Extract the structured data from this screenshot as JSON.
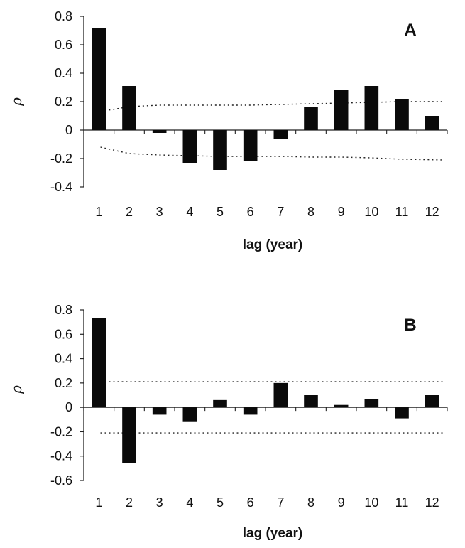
{
  "chart_data": [
    {
      "type": "bar",
      "panel_label": "A",
      "categories": [
        "1",
        "2",
        "3",
        "4",
        "5",
        "6",
        "7",
        "8",
        "9",
        "10",
        "11",
        "12"
      ],
      "values": [
        0.72,
        0.31,
        -0.02,
        -0.23,
        -0.28,
        -0.22,
        -0.06,
        0.16,
        0.28,
        0.31,
        0.22,
        0.1
      ],
      "confidence_upper": [
        0.13,
        0.165,
        0.175,
        0.175,
        0.175,
        0.175,
        0.18,
        0.185,
        0.19,
        0.195,
        0.2,
        0.2
      ],
      "confidence_lower": [
        -0.12,
        -0.165,
        -0.175,
        -0.18,
        -0.185,
        -0.185,
        -0.185,
        -0.19,
        -0.19,
        -0.195,
        -0.205,
        -0.21
      ],
      "xlabel": "lag (year)",
      "ylabel": "ρ",
      "ylim": [
        -0.4,
        0.8
      ],
      "yticks": [
        "0.8",
        "0.6",
        "0.4",
        "0.2",
        "0",
        "-0.2",
        "-0.4"
      ],
      "ytick_values": [
        0.8,
        0.6,
        0.4,
        0.2,
        0,
        -0.2,
        -0.4
      ],
      "grid": false,
      "bar_color": "#0a0a0a"
    },
    {
      "type": "bar",
      "panel_label": "B",
      "categories": [
        "1",
        "2",
        "3",
        "4",
        "5",
        "6",
        "7",
        "8",
        "9",
        "10",
        "11",
        "12"
      ],
      "values": [
        0.73,
        -0.46,
        -0.06,
        -0.12,
        0.06,
        -0.06,
        0.2,
        0.1,
        0.02,
        0.07,
        -0.09,
        0.1
      ],
      "confidence_upper": [
        0.21,
        0.21,
        0.21,
        0.21,
        0.21,
        0.21,
        0.21,
        0.21,
        0.21,
        0.21,
        0.21,
        0.21
      ],
      "confidence_lower": [
        -0.21,
        -0.21,
        -0.21,
        -0.21,
        -0.21,
        -0.21,
        -0.21,
        -0.21,
        -0.21,
        -0.21,
        -0.21,
        -0.21
      ],
      "xlabel": "lag (year)",
      "ylabel": "ρ",
      "ylim": [
        -0.6,
        0.8
      ],
      "yticks": [
        "0.8",
        "0.6",
        "0.4",
        "0.2",
        "0",
        "-0.2",
        "-0.4",
        "-0.6"
      ],
      "ytick_values": [
        0.8,
        0.6,
        0.4,
        0.2,
        0,
        -0.2,
        -0.4,
        -0.6
      ],
      "grid": false,
      "bar_color": "#0a0a0a"
    }
  ]
}
